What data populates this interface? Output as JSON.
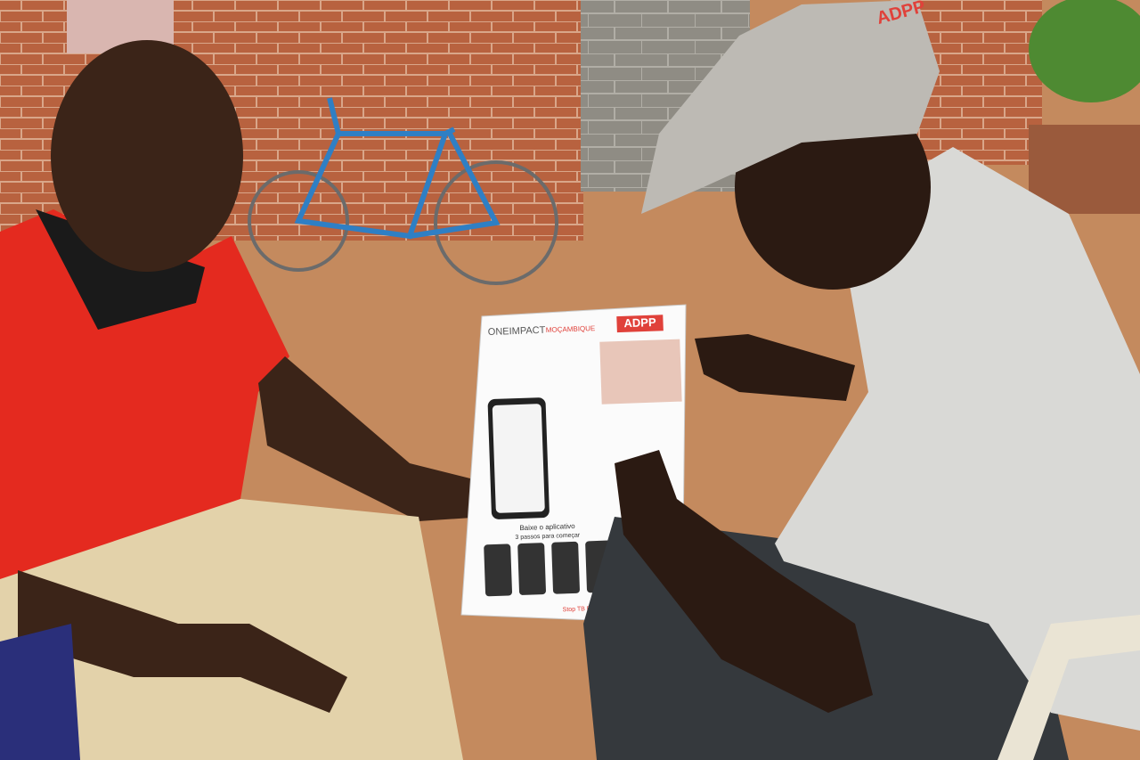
{
  "scene": {
    "poster": {
      "brand": "ONEIMPACT",
      "country": "MOÇAMBIQUE",
      "partner": "ADPP",
      "download": "Baixe o aplicativo",
      "steps": "3 passos para começar",
      "footer": "Stop TB Partnership"
    },
    "cap_logo": "ADPP"
  }
}
